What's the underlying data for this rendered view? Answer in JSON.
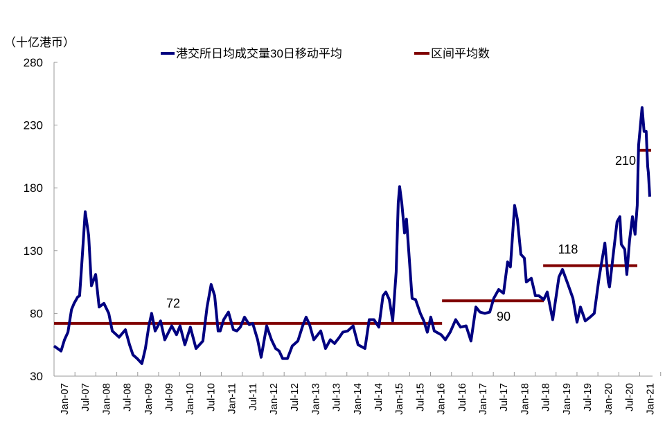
{
  "chart_data": {
    "type": "line",
    "title": "",
    "unit_label": "（十亿港币）",
    "xlabel": "",
    "ylabel": "",
    "ylim": [
      30,
      280
    ],
    "yticks": [
      30,
      80,
      130,
      180,
      230,
      280
    ],
    "xlim": [
      "2007-01-01",
      "2021-04-15"
    ],
    "xtick_labels": [
      "Jan-07",
      "Jul-07",
      "Jan-08",
      "Jul-08",
      "Jan-09",
      "Jul-09",
      "Jan-10",
      "Jul-10",
      "Jan-11",
      "Jul-11",
      "Jan-12",
      "Jul-12",
      "Jan-13",
      "Jul-13",
      "Jan-14",
      "Jul-14",
      "Jan-15",
      "Jul-15",
      "Jan-16",
      "Jul-16",
      "Jan-17",
      "Jul-17",
      "Jan-18",
      "Jul-18",
      "Jan-19",
      "Jul-19",
      "Jan-20",
      "Jul-20",
      "Jan-21"
    ],
    "grid": false,
    "legend_position": "top",
    "series": [
      {
        "name": "港交所日均成交量30日移动平均",
        "color": "#000080",
        "points": [
          [
            "2007-01-01",
            54
          ],
          [
            "2007-03-01",
            50
          ],
          [
            "2007-04-01",
            59
          ],
          [
            "2007-05-01",
            65
          ],
          [
            "2007-06-01",
            83
          ],
          [
            "2007-06-24",
            88
          ],
          [
            "2007-07-24",
            93
          ],
          [
            "2007-08-11",
            94
          ],
          [
            "2007-08-29",
            118
          ],
          [
            "2007-09-29",
            161
          ],
          [
            "2007-10-29",
            142
          ],
          [
            "2007-11-23",
            102
          ],
          [
            "2007-12-29",
            111
          ],
          [
            "2008-01-29",
            85
          ],
          [
            "2008-03-10",
            88
          ],
          [
            "2008-04-22",
            80
          ],
          [
            "2008-05-22",
            66
          ],
          [
            "2008-07-21",
            61
          ],
          [
            "2008-09-15",
            67
          ],
          [
            "2008-10-21",
            55
          ],
          [
            "2008-11-20",
            47
          ],
          [
            "2008-12-26",
            44
          ],
          [
            "2009-02-07",
            40
          ],
          [
            "2009-03-07",
            52
          ],
          [
            "2009-04-07",
            70
          ],
          [
            "2009-05-01",
            80
          ],
          [
            "2009-06-01",
            66
          ],
          [
            "2009-07-18",
            74
          ],
          [
            "2009-08-24",
            59
          ],
          [
            "2009-10-24",
            70
          ],
          [
            "2009-12-05",
            63
          ],
          [
            "2010-01-05",
            70
          ],
          [
            "2010-02-17",
            55
          ],
          [
            "2010-04-04",
            69
          ],
          [
            "2010-05-23",
            52
          ],
          [
            "2010-07-22",
            58
          ],
          [
            "2010-08-28",
            85
          ],
          [
            "2010-10-03",
            103
          ],
          [
            "2010-11-03",
            94
          ],
          [
            "2010-12-03",
            66
          ],
          [
            "2010-12-21",
            66
          ],
          [
            "2011-01-21",
            75
          ],
          [
            "2011-03-02",
            81
          ],
          [
            "2011-04-14",
            67
          ],
          [
            "2011-05-14",
            66
          ],
          [
            "2011-06-14",
            69
          ],
          [
            "2011-07-20",
            77
          ],
          [
            "2011-09-01",
            71
          ],
          [
            "2011-10-01",
            72
          ],
          [
            "2011-11-13",
            59
          ],
          [
            "2011-12-13",
            45
          ],
          [
            "2012-02-01",
            70
          ],
          [
            "2012-03-12",
            59
          ],
          [
            "2012-04-18",
            52
          ],
          [
            "2012-05-18",
            50
          ],
          [
            "2012-06-18",
            44
          ],
          [
            "2012-07-30",
            44
          ],
          [
            "2012-09-11",
            54
          ],
          [
            "2012-10-29",
            58
          ],
          [
            "2012-12-10",
            70
          ],
          [
            "2013-01-10",
            77
          ],
          [
            "2013-02-10",
            71
          ],
          [
            "2013-03-16",
            59
          ],
          [
            "2013-05-16",
            66
          ],
          [
            "2013-06-27",
            52
          ],
          [
            "2013-08-09",
            59
          ],
          [
            "2013-09-15",
            56
          ],
          [
            "2013-10-27",
            61
          ],
          [
            "2013-11-26",
            65
          ],
          [
            "2014-01-08",
            66
          ],
          [
            "2014-02-25",
            70
          ],
          [
            "2014-04-07",
            55
          ],
          [
            "2014-06-07",
            52
          ],
          [
            "2014-07-13",
            75
          ],
          [
            "2014-08-24",
            75
          ],
          [
            "2014-10-06",
            69
          ],
          [
            "2014-11-12",
            94
          ],
          [
            "2014-12-06",
            97
          ],
          [
            "2015-01-06",
            91
          ],
          [
            "2015-02-05",
            74
          ],
          [
            "2015-03-05",
            113
          ],
          [
            "2015-03-23",
            168
          ],
          [
            "2015-04-05",
            181
          ],
          [
            "2015-04-23",
            168
          ],
          [
            "2015-05-17",
            144
          ],
          [
            "2015-06-04",
            155
          ],
          [
            "2015-06-22",
            131
          ],
          [
            "2015-07-22",
            92
          ],
          [
            "2015-08-22",
            91
          ],
          [
            "2015-10-03",
            80
          ],
          [
            "2015-11-03",
            74
          ],
          [
            "2015-12-03",
            65
          ],
          [
            "2016-01-03",
            77
          ],
          [
            "2016-02-03",
            66
          ],
          [
            "2016-04-02",
            63
          ],
          [
            "2016-05-08",
            59
          ],
          [
            "2016-06-20",
            65
          ],
          [
            "2016-08-07",
            75
          ],
          [
            "2016-09-19",
            69
          ],
          [
            "2016-11-07",
            70
          ],
          [
            "2016-12-19",
            58
          ],
          [
            "2017-02-01",
            85
          ],
          [
            "2017-03-06",
            81
          ],
          [
            "2017-04-18",
            80
          ],
          [
            "2017-05-30",
            81
          ],
          [
            "2017-07-05",
            92
          ],
          [
            "2017-08-17",
            99
          ],
          [
            "2017-09-29",
            96
          ],
          [
            "2017-11-04",
            121
          ],
          [
            "2017-11-28",
            117
          ],
          [
            "2018-01-04",
            166
          ],
          [
            "2018-01-28",
            155
          ],
          [
            "2018-02-28",
            127
          ],
          [
            "2018-03-28",
            124
          ],
          [
            "2018-04-15",
            105
          ],
          [
            "2018-05-28",
            108
          ],
          [
            "2018-07-03",
            94
          ],
          [
            "2018-08-03",
            94
          ],
          [
            "2018-09-15",
            91
          ],
          [
            "2018-10-15",
            97
          ],
          [
            "2018-12-02",
            75
          ],
          [
            "2019-01-26",
            109
          ],
          [
            "2019-02-26",
            115
          ],
          [
            "2019-04-14",
            103
          ],
          [
            "2019-05-26",
            92
          ],
          [
            "2019-07-01",
            73
          ],
          [
            "2019-08-01",
            85
          ],
          [
            "2019-09-12",
            74
          ],
          [
            "2019-10-24",
            77
          ],
          [
            "2019-11-30",
            80
          ],
          [
            "2020-01-12",
            109
          ],
          [
            "2020-03-01",
            136
          ],
          [
            "2020-03-30",
            105
          ],
          [
            "2020-04-11",
            101
          ],
          [
            "2020-05-23",
            135
          ],
          [
            "2020-06-16",
            153
          ],
          [
            "2020-07-10",
            157
          ],
          [
            "2020-07-22",
            135
          ],
          [
            "2020-08-22",
            131
          ],
          [
            "2020-09-10",
            111
          ],
          [
            "2020-10-03",
            138
          ],
          [
            "2020-10-28",
            157
          ],
          [
            "2020-11-21",
            143
          ],
          [
            "2020-12-09",
            166
          ],
          [
            "2020-12-21",
            214
          ],
          [
            "2021-01-21",
            244
          ],
          [
            "2021-02-08",
            225
          ],
          [
            "2021-02-26",
            225
          ],
          [
            "2021-03-09",
            197
          ],
          [
            "2021-03-15",
            192
          ],
          [
            "2021-03-27",
            173
          ]
        ]
      },
      {
        "name": "区间平均数",
        "color": "#800000",
        "segments": [
          {
            "start": "2007-01-01",
            "end": "2016-04-10",
            "value": 72,
            "label": "72"
          },
          {
            "start": "2016-04-10",
            "end": "2018-09-15",
            "value": 90,
            "label": "90"
          },
          {
            "start": "2018-09-10",
            "end": "2020-12-10",
            "value": 118,
            "label": "118"
          },
          {
            "start": "2020-12-10",
            "end": "2021-04-15",
            "value": 210,
            "label": "210"
          }
        ]
      }
    ]
  }
}
